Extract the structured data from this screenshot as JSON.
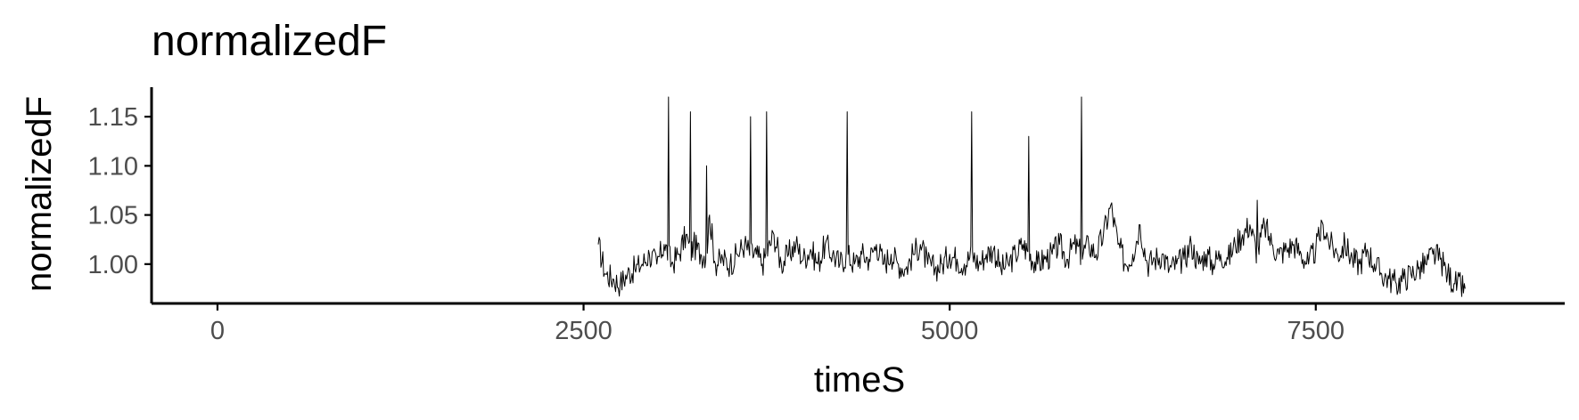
{
  "chart_data": {
    "type": "line",
    "title": "normalizedF",
    "xlabel": "timeS",
    "ylabel": "normalizedF",
    "xlim": [
      -450,
      9200
    ],
    "ylim": [
      0.96,
      1.18
    ],
    "x_ticks": [
      0,
      2500,
      5000,
      7500
    ],
    "x_tick_labels": [
      "0",
      "2500",
      "5000",
      "7500"
    ],
    "y_ticks": [
      1.0,
      1.05,
      1.1,
      1.15
    ],
    "y_tick_labels": [
      "1.00",
      "1.05",
      "1.10",
      "1.15"
    ],
    "grid": false,
    "legend": "none",
    "series_color": "#000000",
    "series": [
      {
        "x": [
          2600,
          2650,
          2700,
          2750,
          2800,
          2850,
          2900,
          2950,
          3000,
          3050,
          3080,
          3100,
          3150,
          3200,
          3230,
          3250,
          3300,
          3340,
          3360,
          3400,
          3450,
          3500,
          3550,
          3600,
          3640,
          3680,
          3720,
          3750,
          3800,
          3850,
          3900,
          3950,
          4000,
          4050,
          4100,
          4150,
          4200,
          4250,
          4300,
          4350,
          4400,
          4450,
          4500,
          4550,
          4600,
          4650,
          4700,
          4750,
          4800,
          4850,
          4900,
          4950,
          5000,
          5050,
          5100,
          5150,
          5200,
          5250,
          5300,
          5350,
          5400,
          5450,
          5500,
          5540,
          5600,
          5650,
          5700,
          5750,
          5800,
          5850,
          5900,
          5950,
          6000,
          6050,
          6100,
          6150,
          6200,
          6250,
          6300,
          6350,
          6400,
          6450,
          6500,
          6550,
          6600,
          6650,
          6700,
          6750,
          6800,
          6850,
          6900,
          6950,
          7000,
          7050,
          7100,
          7150,
          7200,
          7250,
          7300,
          7350,
          7400,
          7450,
          7500,
          7550,
          7600,
          7650,
          7700,
          7750,
          7800,
          7850,
          7900,
          7950,
          8000,
          8050,
          8100,
          8150,
          8200,
          8250,
          8300,
          8350,
          8400,
          8450,
          8520
        ],
        "y": [
          1.02,
          0.99,
          0.985,
          0.98,
          0.99,
          0.995,
          1.0,
          1.01,
          1.0,
          1.02,
          1.17,
          1.0,
          1.01,
          1.03,
          1.155,
          1.02,
          1.01,
          1.1,
          1.05,
          1.0,
          1.005,
          1.0,
          1.01,
          1.02,
          1.15,
          1.01,
          1.0,
          1.155,
          1.03,
          1.0,
          1.01,
          1.02,
          1.005,
          1.015,
          1.0,
          1.02,
          1.01,
          1.0,
          1.155,
          1.0,
          1.01,
          1.005,
          1.02,
          1.0,
          1.01,
          1.0,
          0.995,
          1.01,
          1.02,
          1.0,
          0.995,
          1.0,
          1.01,
          1.005,
          1.0,
          1.155,
          1.0,
          1.01,
          1.015,
          0.995,
          1.0,
          1.01,
          1.02,
          1.13,
          1.0,
          1.005,
          1.01,
          1.02,
          1.005,
          1.02,
          1.17,
          1.02,
          1.01,
          1.03,
          1.06,
          1.02,
          1.0,
          1.01,
          1.04,
          1.0,
          1.005,
          1.01,
          0.995,
          1.0,
          1.005,
          1.02,
          1.0,
          1.01,
          1.0,
          1.01,
          1.005,
          1.02,
          1.03,
          1.04,
          1.065,
          1.04,
          1.02,
          1.01,
          1.015,
          1.02,
          1.01,
          1.0,
          1.015,
          1.04,
          1.02,
          1.01,
          1.02,
          1.005,
          1.0,
          1.015,
          1.0,
          0.99,
          0.985,
          0.98,
          0.985,
          0.99,
          0.995,
          1.0,
          1.01,
          1.005,
          0.99,
          0.98,
          0.975
        ]
      }
    ]
  }
}
